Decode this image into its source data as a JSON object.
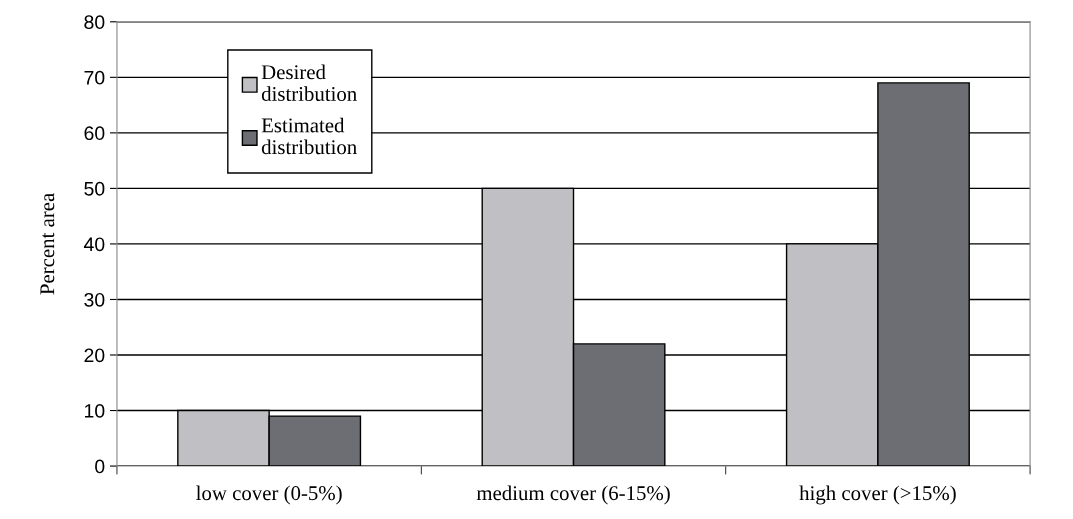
{
  "chart_data": {
    "type": "bar",
    "ylabel": "Percent area",
    "categories": [
      "low cover (0-5%)",
      "medium cover (6-15%)",
      "high cover (>15%)"
    ],
    "series": [
      {
        "name": "Desired distribution",
        "color": "#c0c0c4",
        "values": [
          10,
          50,
          40
        ]
      },
      {
        "name": "Estimated distribution",
        "color": "#6d6e73",
        "values": [
          9,
          22,
          69
        ]
      }
    ],
    "ylim": [
      0,
      80
    ],
    "yticks": [
      0,
      10,
      20,
      30,
      40,
      50,
      60,
      70,
      80
    ],
    "grid": "y",
    "legend": "top left"
  }
}
